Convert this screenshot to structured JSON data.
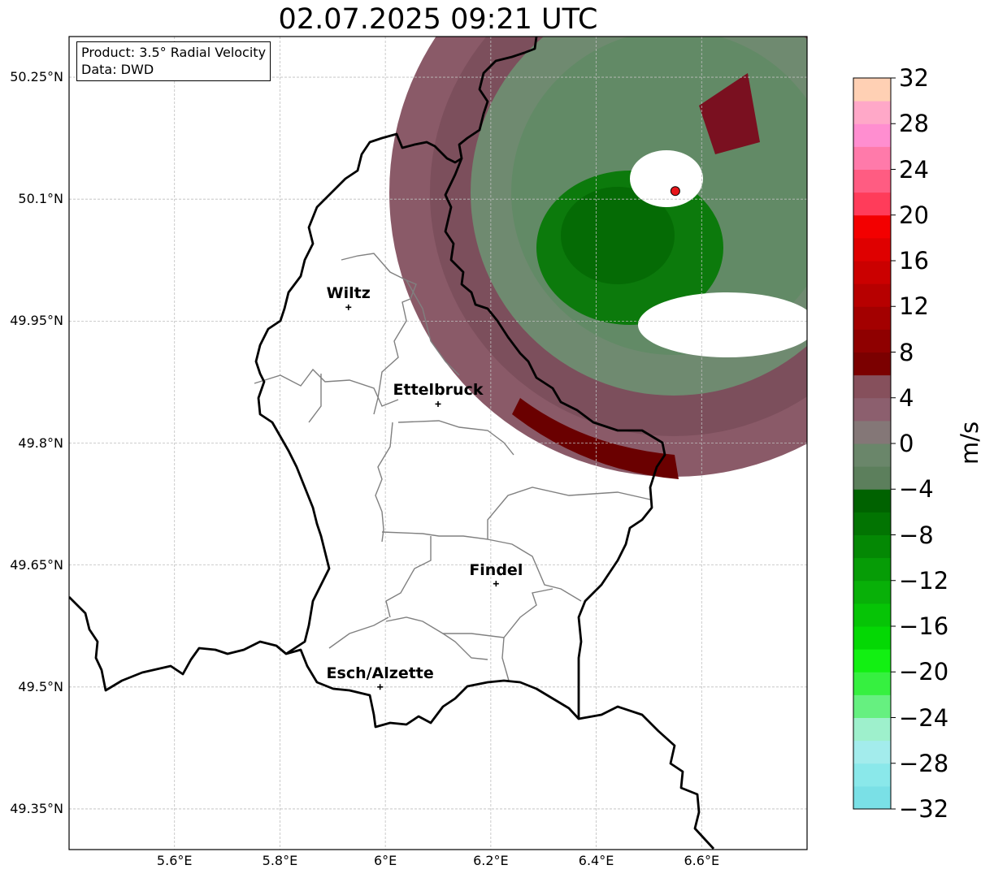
{
  "title": "02.07.2025 09:21 UTC",
  "info": {
    "product": "Product: 3.5° Radial Velocity",
    "source": "Data: DWD"
  },
  "map": {
    "lon_range": [
      5.4,
      6.8
    ],
    "lat_range": [
      49.3,
      50.3
    ],
    "lat_ticks": [
      "50.25°N",
      "50.1°N",
      "49.95°N",
      "49.8°N",
      "49.65°N",
      "49.5°N",
      "49.35°N"
    ],
    "lon_ticks": [
      "5.6°E",
      "5.8°E",
      "6°E",
      "6.2°E",
      "6.4°E",
      "6.6°E"
    ],
    "grid": true,
    "cities": [
      {
        "name": "Wiltz",
        "lon": 5.93,
        "lat": 49.967
      },
      {
        "name": "Ettelbruck",
        "lon": 6.1,
        "lat": 49.848
      },
      {
        "name": "Findel",
        "lon": 6.21,
        "lat": 49.627
      },
      {
        "name": "Esch/Alzette",
        "lon": 5.99,
        "lat": 49.5
      }
    ],
    "radar_site": {
      "lon": 6.55,
      "lat": 50.11,
      "color": "#e8161b"
    }
  },
  "colorbar": {
    "unit": "m/s",
    "min": -32,
    "max": 32,
    "ticks": [
      "32",
      "28",
      "24",
      "20",
      "16",
      "12",
      "8",
      "4",
      "0",
      "−4",
      "−8",
      "−12",
      "−16",
      "−20",
      "−24",
      "−28",
      "−32"
    ],
    "colors": [
      "#7ae0e6",
      "#8ae8ea",
      "#a3ecec",
      "#9ef0cc",
      "#66f080",
      "#36f040",
      "#12f012",
      "#04d804",
      "#06c406",
      "#08b008",
      "#069c06",
      "#048804",
      "#027402",
      "#006200",
      "#5c7f5c",
      "#6a866a",
      "#847777",
      "#8c5f6e",
      "#86505c",
      "#7b0000",
      "#8f0000",
      "#a30000",
      "#b70000",
      "#cb0000",
      "#df0000",
      "#f30000",
      "#ff3c5a",
      "#ff5c82",
      "#ff7aaa",
      "#ff8ed0",
      "#ffa8c8",
      "#ffd0b4"
    ]
  }
}
